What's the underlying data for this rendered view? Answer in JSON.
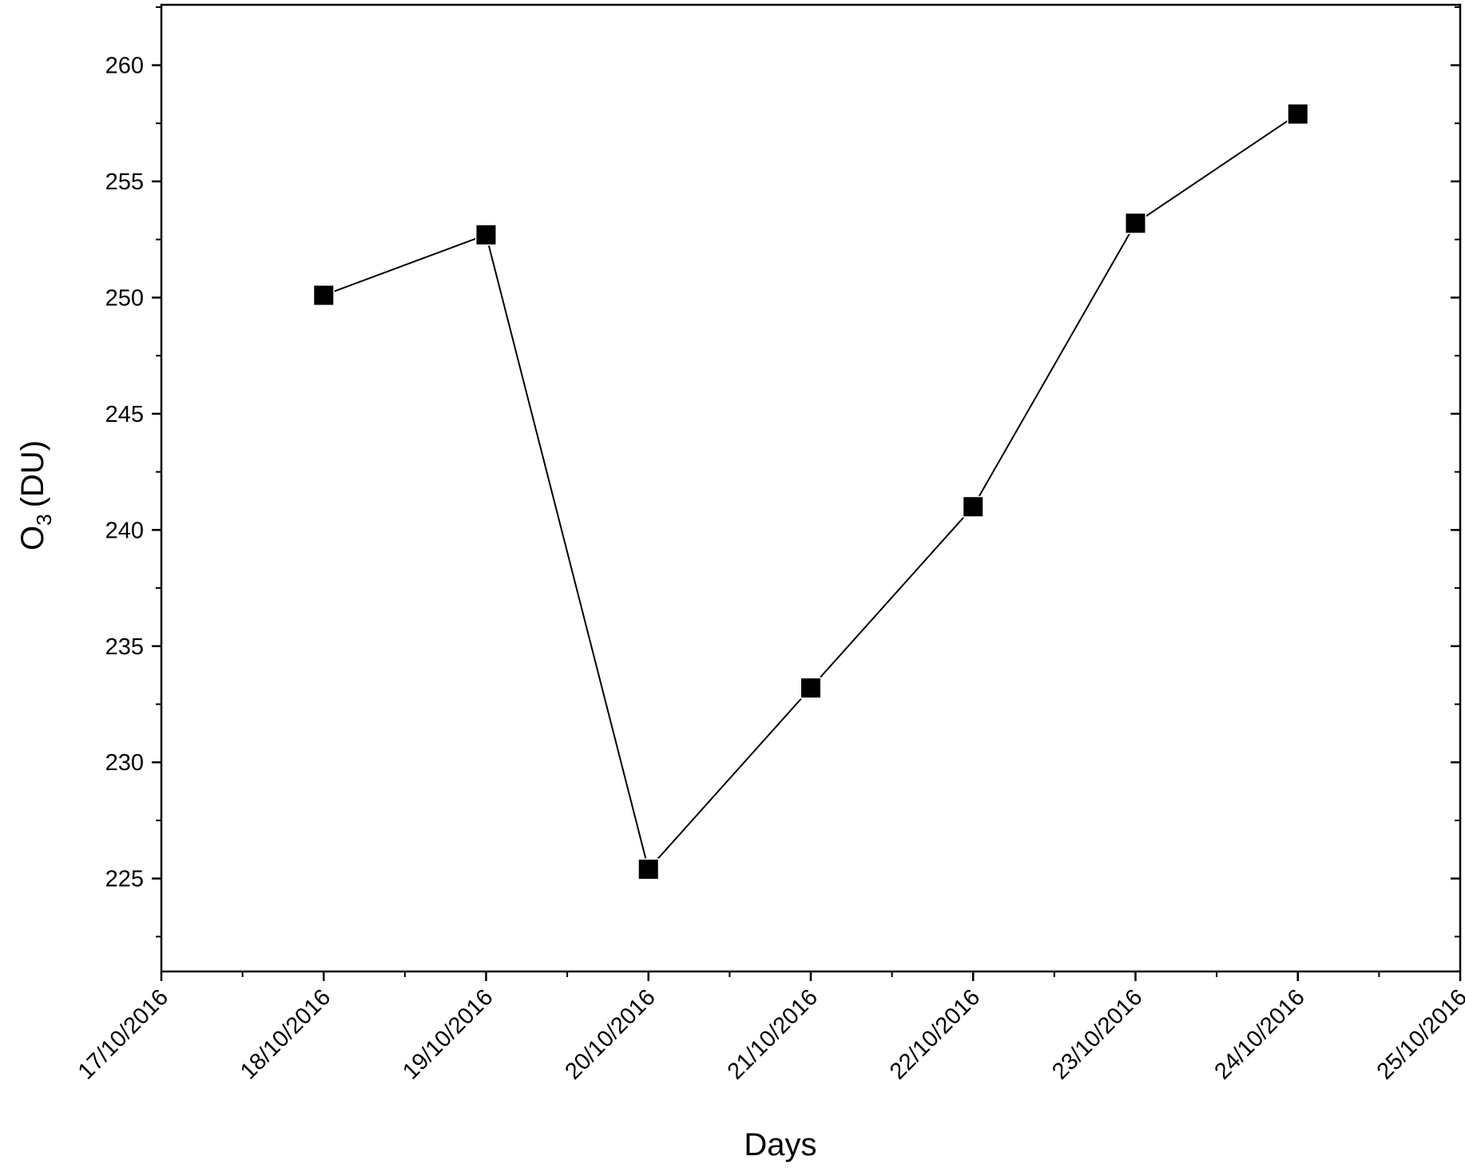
{
  "chart_data": {
    "type": "line",
    "xlabel": "Days",
    "ylabel": "O",
    "ylabel_subscript": "3",
    "ylabel_unit": "(DU)",
    "x_ticks": [
      "17/10/2016",
      "18/10/2016",
      "19/10/2016",
      "20/10/2016",
      "21/10/2016",
      "22/10/2016",
      "23/10/2016",
      "24/10/2016",
      "25/10/2016"
    ],
    "x_range": [
      "17/10/2016",
      "25/10/2016"
    ],
    "y_ticks": [
      225,
      230,
      235,
      240,
      245,
      250,
      255,
      260
    ],
    "ylim": [
      221,
      262.6
    ],
    "grid": false,
    "series": [
      {
        "marker": "square",
        "color": "#000000",
        "points": [
          {
            "x": "18/10/2016",
            "y": 250.1
          },
          {
            "x": "19/10/2016",
            "y": 252.7
          },
          {
            "x": "20/10/2016",
            "y": 225.4
          },
          {
            "x": "21/10/2016",
            "y": 233.2
          },
          {
            "x": "22/10/2016",
            "y": 241.0
          },
          {
            "x": "23/10/2016",
            "y": 253.2
          },
          {
            "x": "24/10/2016",
            "y": 257.9
          }
        ]
      }
    ]
  }
}
